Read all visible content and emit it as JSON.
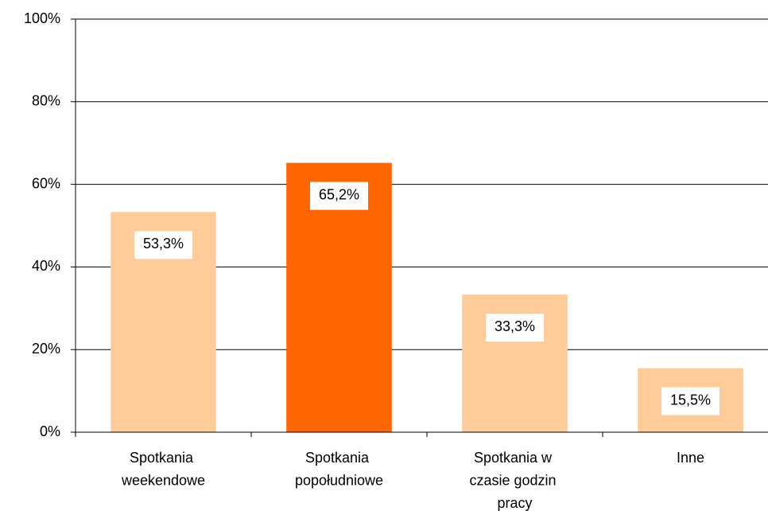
{
  "chart_data": {
    "type": "bar",
    "categories": [
      "Spotkania weekendowe",
      "Spotkania popołudniowe",
      "Spotkania w czasie godzin pracy",
      "Inne"
    ],
    "values": [
      53.3,
      65.2,
      33.3,
      15.5
    ],
    "value_labels": [
      "53,3%",
      "65,2%",
      "33,3%",
      "15,5%"
    ],
    "colors": [
      "#FFCC99",
      "#FF6600",
      "#FFCC99",
      "#FFCC99"
    ],
    "ylim": [
      0,
      100
    ],
    "yticks": [
      {
        "value": 0,
        "label": "0%"
      },
      {
        "value": 20,
        "label": "20%"
      },
      {
        "value": 40,
        "label": "40%"
      },
      {
        "value": 60,
        "label": "60%"
      },
      {
        "value": 80,
        "label": "80%"
      },
      {
        "value": 100,
        "label": "100%"
      }
    ],
    "grid": true
  }
}
